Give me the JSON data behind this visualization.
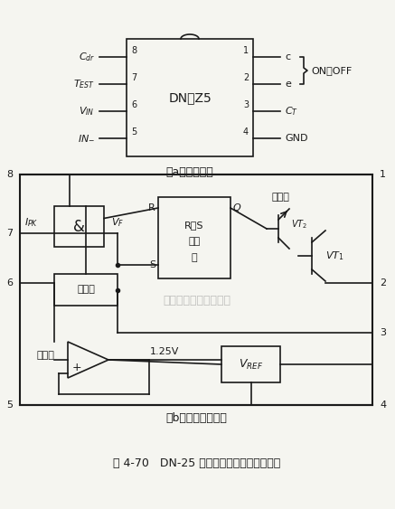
{
  "bg_color": "#f5f5f0",
  "line_color": "#1a1a1a",
  "title": "图 4-70   DN-25 的管脚配置与内部结构框图",
  "subtitle_a": "（a）管脚配置",
  "subtitle_b": "（b）内部结构框图",
  "ic_label": "DN－Z5",
  "on_off_label": "ON／OFF",
  "pin_left_labels": [
    "C_dr",
    "T_EST",
    "V_IN",
    "IN_"
  ],
  "pin_left_nums": [
    "8",
    "7",
    "6",
    "5"
  ],
  "pin_right_labels": [
    "c",
    "e",
    "C_T",
    "GND"
  ],
  "pin_right_nums": [
    "1",
    "2",
    "3",
    "4"
  ],
  "watermark": "杭州将客科技有限公司"
}
